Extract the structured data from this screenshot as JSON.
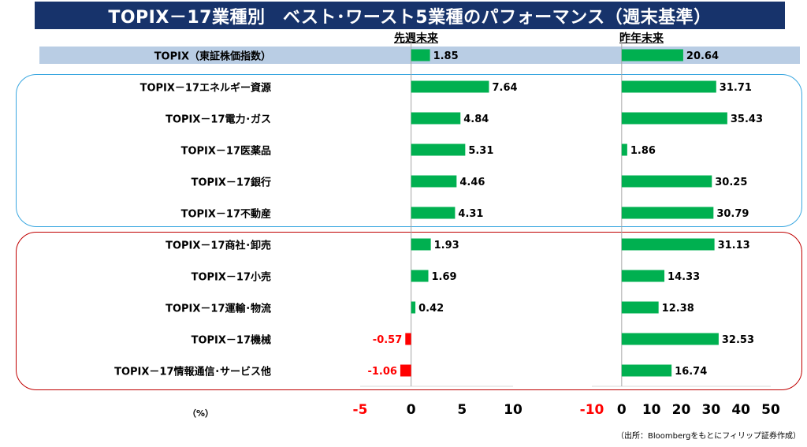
{
  "title": "TOPIX－17業種別　ベスト･ワースト5業種のパフォーマンス（週末基準）",
  "unit_label": "（%）",
  "source": "（出所：Bloombergをもとにフィリップ証券作成）",
  "colors": {
    "positive": "#00b050",
    "negative": "#ff0000",
    "title_bg": "#17336b",
    "best_border": "#3aa7e0",
    "worst_border": "#c00000",
    "topix_band": "#b9cde4"
  },
  "chart_data": [
    {
      "type": "bar",
      "orientation": "horizontal",
      "title": "先週末来",
      "categories": [
        "TOPIX（東証株価指数）",
        "TOPIX－17エネルギー資源",
        "TOPIX－17電力･ガス",
        "TOPIX－17医薬品",
        "TOPIX－17銀行",
        "TOPIX－17不動産",
        "TOPIX－17商社･卸売",
        "TOPIX－17小売",
        "TOPIX－17運輸･物流",
        "TOPIX－17機械",
        "TOPIX－17情報通信･サービス他"
      ],
      "values": [
        1.85,
        7.64,
        4.84,
        5.31,
        4.46,
        4.31,
        1.93,
        1.69,
        0.42,
        -0.57,
        -1.06
      ],
      "value_labels": [
        "1.85",
        "7.64",
        "4.84",
        "5.31",
        "4.46",
        "4.31",
        "1.93",
        "1.69",
        "0.42",
        "-0.57",
        "-1.06"
      ],
      "xlim": [
        -5,
        10
      ],
      "ticks": [
        "-5",
        "0",
        "5",
        "10"
      ]
    },
    {
      "type": "bar",
      "orientation": "horizontal",
      "title": "昨年末来",
      "categories": [
        "TOPIX（東証株価指数）",
        "TOPIX－17エネルギー資源",
        "TOPIX－17電力･ガス",
        "TOPIX－17医薬品",
        "TOPIX－17銀行",
        "TOPIX－17不動産",
        "TOPIX－17商社･卸売",
        "TOPIX－17小売",
        "TOPIX－17運輸･物流",
        "TOPIX－17機械",
        "TOPIX－17情報通信･サービス他"
      ],
      "values": [
        20.64,
        31.71,
        35.43,
        1.86,
        30.25,
        30.79,
        31.13,
        14.33,
        12.38,
        32.53,
        16.74
      ],
      "value_labels": [
        "20.64",
        "31.71",
        "35.43",
        "1.86",
        "30.25",
        "30.79",
        "31.13",
        "14.33",
        "12.38",
        "32.53",
        "16.74"
      ],
      "xlim": [
        -10,
        50
      ],
      "ticks": [
        "-10",
        "0",
        "10",
        "20",
        "30",
        "40",
        "50"
      ]
    }
  ]
}
